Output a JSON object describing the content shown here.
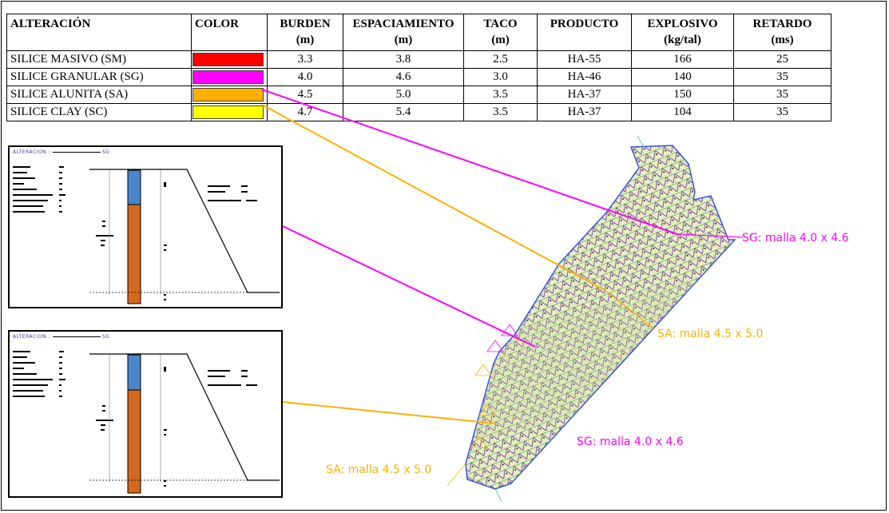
{
  "table": {
    "headers": [
      {
        "line1": "ALTERACIÓN",
        "line2": ""
      },
      {
        "line1": "COLOR",
        "line2": ""
      },
      {
        "line1": "BURDEN",
        "line2": "(m)"
      },
      {
        "line1": "ESPACIAMIENTO",
        "line2": "(m)"
      },
      {
        "line1": "TACO",
        "line2": "(m)"
      },
      {
        "line1": "PRODUCTO",
        "line2": ""
      },
      {
        "line1": "EXPLOSIVO",
        "line2": "(kg/tal)"
      },
      {
        "line1": "RETARDO",
        "line2": "(ms)"
      }
    ],
    "rows": [
      {
        "alteracion": "SILICE MASIVO (SM)",
        "color": "#ff0000",
        "burden": "3.3",
        "espaciamiento": "3.8",
        "taco": "2.5",
        "producto": "HA-55",
        "explosivo": "166",
        "retardo": "25"
      },
      {
        "alteracion": "SILICE GRANULAR (SG)",
        "color": "#ff00ff",
        "burden": "4.0",
        "espaciamiento": "4.6",
        "taco": "3.0",
        "producto": "HA-46",
        "explosivo": "140",
        "retardo": "35"
      },
      {
        "alteracion": "SILICE ALUNITA (SA)",
        "color": "#ffb000",
        "burden": "4.5",
        "espaciamiento": "5.0",
        "taco": "3.5",
        "producto": "HA-37",
        "explosivo": "150",
        "retardo": "35"
      },
      {
        "alteracion": "SILICE CLAY (SC)",
        "color": "#ffff00",
        "burden": "4.7",
        "espaciamiento": "5.4",
        "taco": "3.5",
        "producto": "HA-37",
        "explosivo": "104",
        "retardo": "35"
      }
    ]
  },
  "sheets": [
    {
      "title": "ALTERACION :",
      "tag": "SG"
    },
    {
      "title": "ALTERACION :",
      "tag": "SG"
    }
  ],
  "labels": {
    "sg_top": "SG: malla 4.0 x 4.6",
    "sa_mid": "SA: malla 4.5 x 5.0",
    "sg_bottom": "SG: malla 4.0 x 4.6",
    "sa_bottom": "SA: malla 4.5 x 5.0"
  },
  "colors": {
    "sg": "#ff00ff",
    "sa": "#ffb000",
    "outline": "#3a56e0",
    "stemming": "#4a86c8",
    "charge": "#d2691e"
  }
}
